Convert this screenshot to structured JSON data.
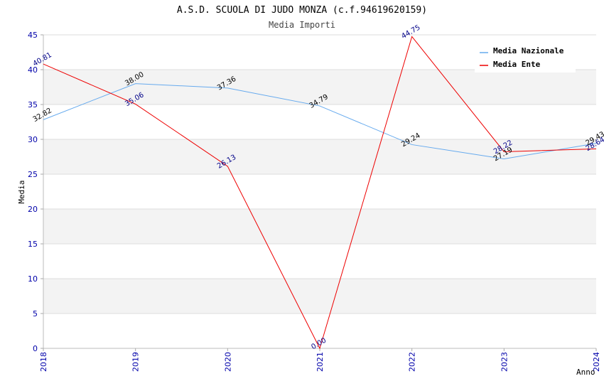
{
  "chart_data": {
    "type": "line",
    "title": "A.S.D. SCUOLA DI JUDO MONZA (c.f.94619620159)",
    "subtitle": "Media Importi",
    "xlabel": "Anno",
    "ylabel": "Media",
    "ylim": [
      0,
      45
    ],
    "yticks": [
      0,
      5,
      10,
      15,
      20,
      25,
      30,
      35,
      40,
      45
    ],
    "categories": [
      "2018",
      "2019",
      "2020",
      "2021",
      "2022",
      "2023",
      "2024"
    ],
    "legend_position": "top-right",
    "grid": true,
    "series": [
      {
        "name": "Media Nazionale",
        "color": "#66aaee",
        "label_color": "#000000",
        "values": [
          32.82,
          38.0,
          37.36,
          34.79,
          29.24,
          27.19,
          29.43
        ],
        "labels": [
          "32.82",
          "38.00",
          "37.36",
          "34.79",
          "29.24",
          "27.19",
          "29.43"
        ]
      },
      {
        "name": "Media Ente",
        "color": "#ee0000",
        "label_color": "#000088",
        "values": [
          40.81,
          35.06,
          26.13,
          0.0,
          44.75,
          28.22,
          28.64
        ],
        "labels": [
          "40.81",
          "35.06",
          "26.13",
          "0.00",
          "44.75",
          "28.22",
          "28.64"
        ]
      }
    ]
  }
}
